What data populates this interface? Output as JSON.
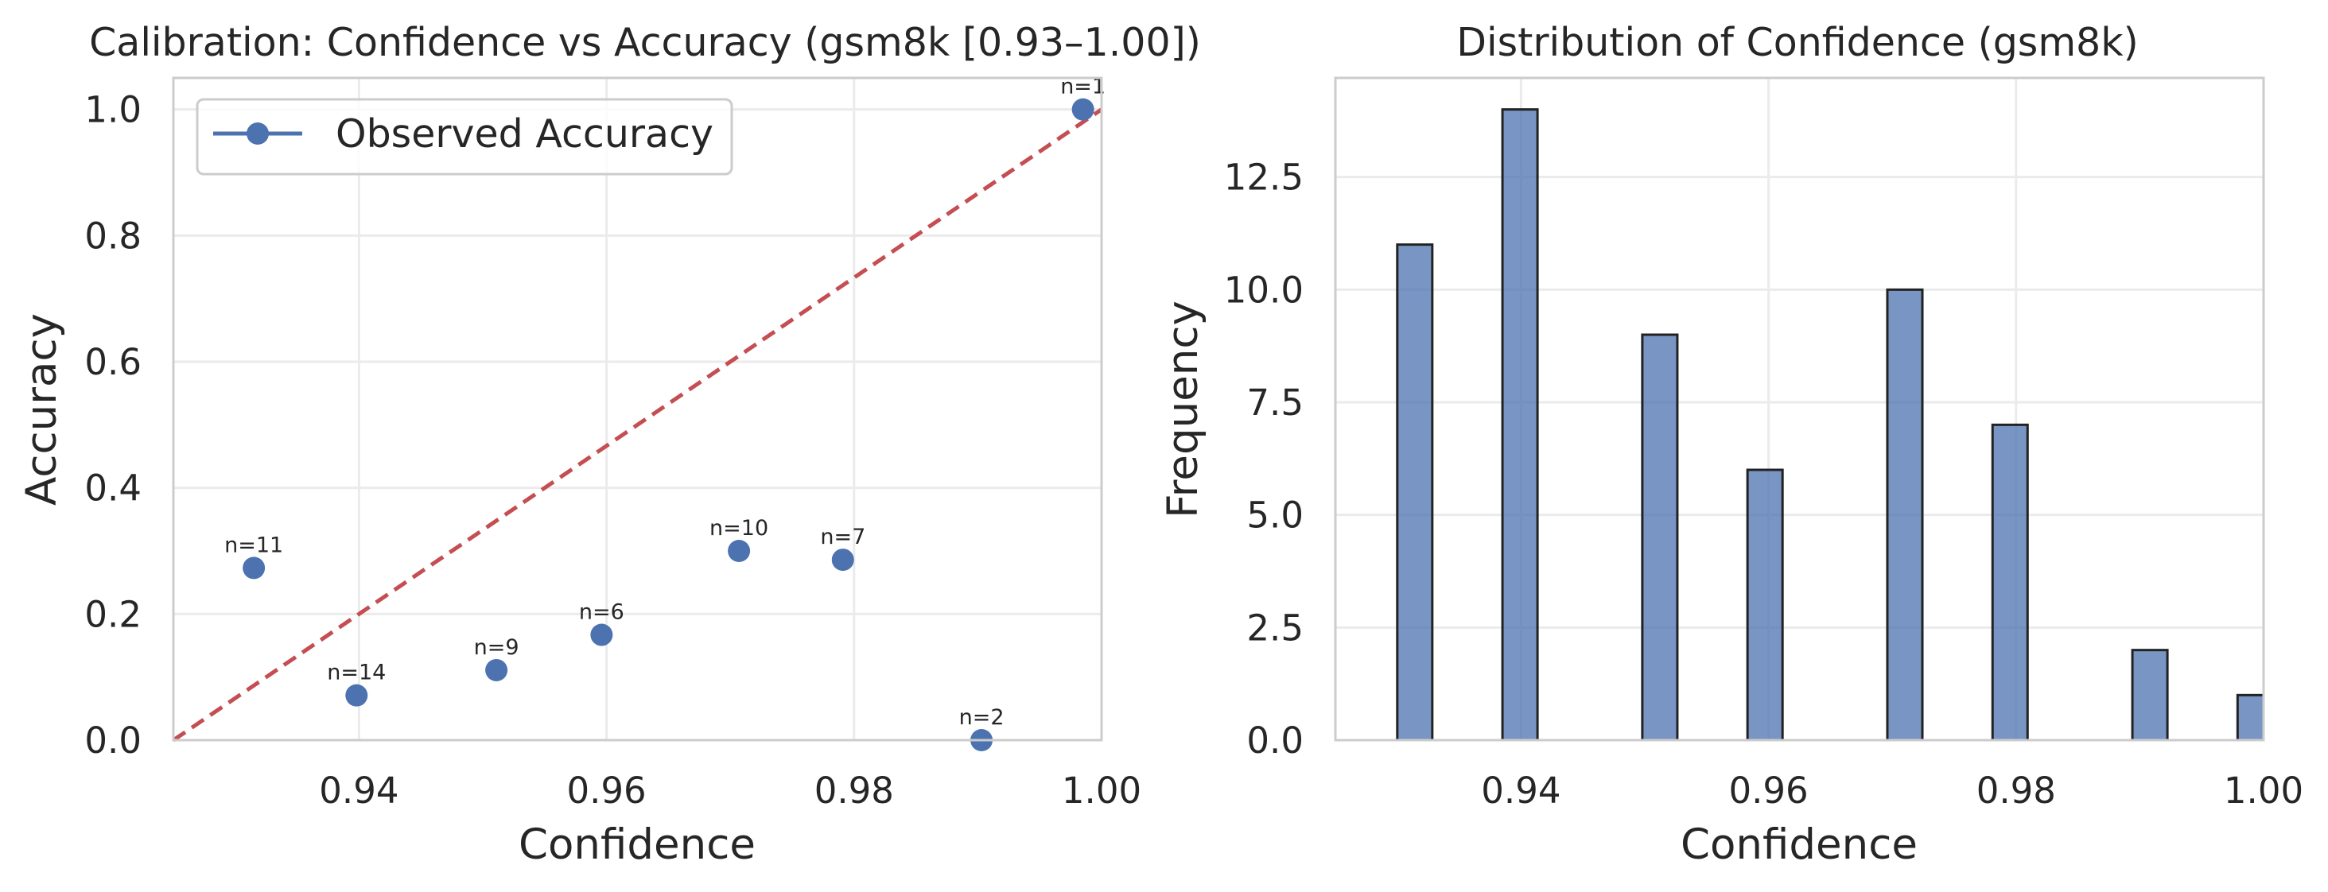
{
  "chart_data": [
    {
      "type": "scatter",
      "title": "Calibration: Confidence vs Accuracy (gsm8k [0.93–1.00])",
      "xlabel": "Confidence",
      "ylabel": "Accuracy",
      "xlim": [
        0.925,
        1.0
      ],
      "ylim": [
        0.0,
        1.05
      ],
      "xticks": [
        0.94,
        0.96,
        0.98,
        1.0
      ],
      "xtick_labels": [
        "0.94",
        "0.96",
        "0.98",
        "1.00"
      ],
      "yticks": [
        0.0,
        0.2,
        0.4,
        0.6,
        0.8,
        1.0
      ],
      "ytick_labels": [
        "0.0",
        "0.2",
        "0.4",
        "0.6",
        "0.8",
        "1.0"
      ],
      "grid": true,
      "legend": {
        "placement": "upper-left",
        "entries": [
          "Observed Accuracy"
        ]
      },
      "colors": {
        "points": "#4c72b0",
        "diagonal": "#c44e52",
        "grid": "#ebebeb",
        "spine": "#cccccc"
      },
      "series": [
        {
          "name": "Observed Accuracy",
          "points": [
            {
              "x": 0.9315,
              "y": 0.273,
              "label": "n=11"
            },
            {
              "x": 0.9398,
              "y": 0.071,
              "label": "n=14"
            },
            {
              "x": 0.9511,
              "y": 0.111,
              "label": "n=9"
            },
            {
              "x": 0.9596,
              "y": 0.167,
              "label": "n=6"
            },
            {
              "x": 0.9707,
              "y": 0.3,
              "label": "n=10"
            },
            {
              "x": 0.9791,
              "y": 0.286,
              "label": "n=7"
            },
            {
              "x": 0.9903,
              "y": 0.0,
              "label": "n=2"
            },
            {
              "x": 0.9985,
              "y": 1.0,
              "label": "n=1"
            }
          ]
        }
      ],
      "reference_line": {
        "style": "dashed",
        "from": [
          0.925,
          0.0
        ],
        "to": [
          1.0,
          1.0
        ]
      }
    },
    {
      "type": "bar",
      "title": "Distribution of Confidence (gsm8k)",
      "xlabel": "Confidence",
      "ylabel": "Frequency",
      "xlim": [
        0.925,
        1.0
      ],
      "ylim": [
        0,
        14.7
      ],
      "xticks": [
        0.94,
        0.96,
        0.98,
        1.0
      ],
      "xtick_labels": [
        "0.94",
        "0.96",
        "0.98",
        "1.00"
      ],
      "yticks": [
        0.0,
        2.5,
        5.0,
        7.5,
        10.0,
        12.5
      ],
      "ytick_labels": [
        "0.0",
        "2.5",
        "5.0",
        "7.5",
        "10.0",
        "12.5"
      ],
      "grid": true,
      "bin_width": 0.00283,
      "colors": {
        "bars": "#4c72b0",
        "edge": "#222222",
        "grid": "#ebebeb",
        "spine": "#cccccc"
      },
      "bins": [
        {
          "start": 0.93,
          "count": 11
        },
        {
          "start": 0.9385,
          "count": 14
        },
        {
          "start": 0.9498,
          "count": 9
        },
        {
          "start": 0.9583,
          "count": 6
        },
        {
          "start": 0.9696,
          "count": 10
        },
        {
          "start": 0.9781,
          "count": 7
        },
        {
          "start": 0.9894,
          "count": 2
        },
        {
          "start": 0.9979,
          "count": 1
        }
      ]
    }
  ]
}
